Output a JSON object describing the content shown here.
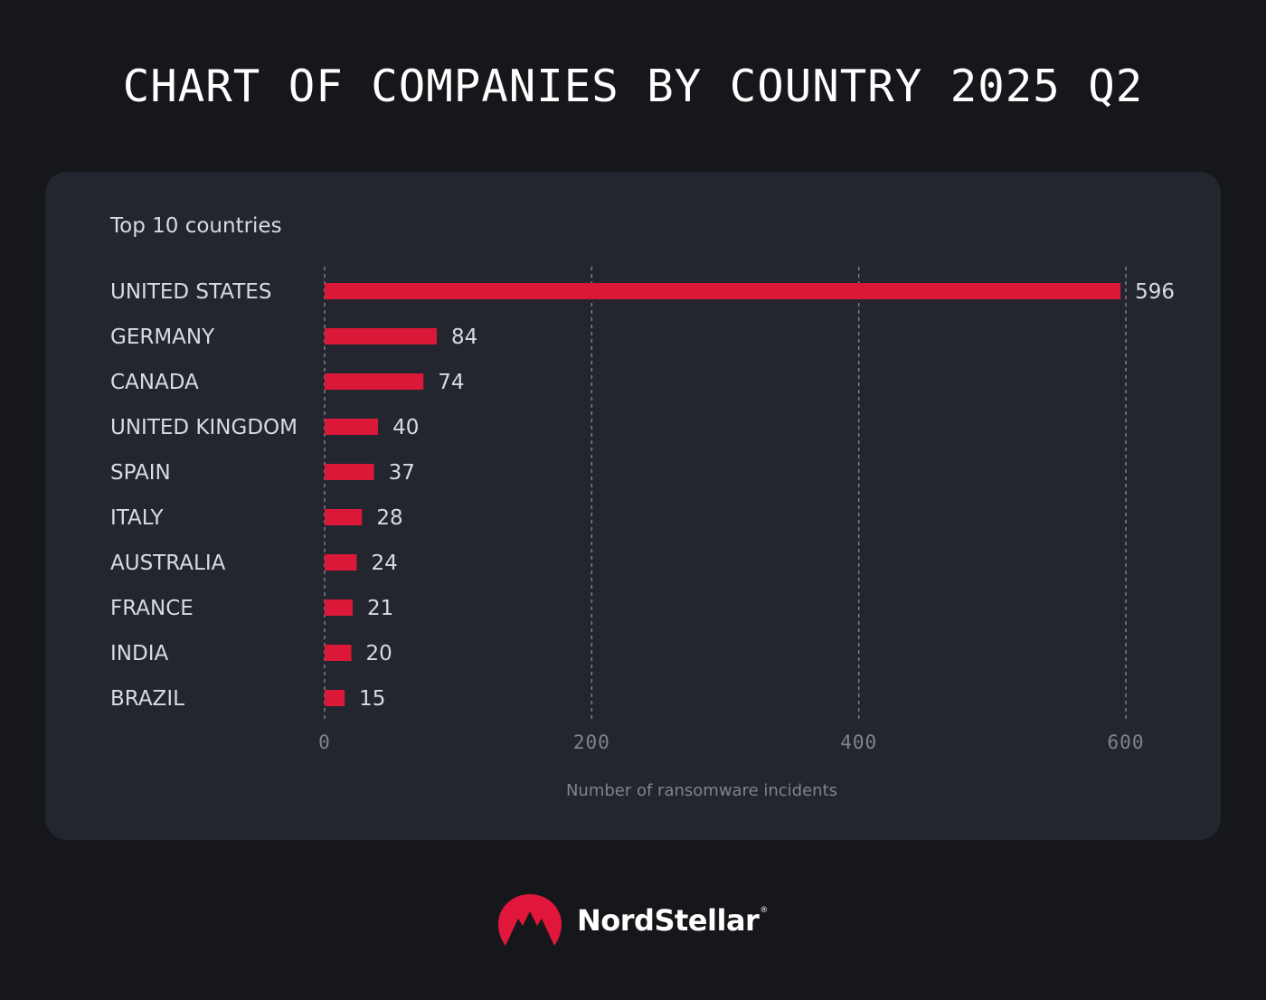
{
  "title": "CHART OF COMPANIES BY COUNTRY 2025 Q2",
  "brand": {
    "name": "NordStellar",
    "registered_mark": "®",
    "logo_icon": "nordstellar-mountain-logo",
    "logo_color": "#e0163b"
  },
  "colors": {
    "background": "#16171b",
    "card": "#23262e",
    "bar": "#dc1838",
    "grid": "#80848e"
  },
  "chart_data": {
    "type": "bar",
    "orientation": "horizontal",
    "subtitle": "Top 10 countries",
    "categories": [
      "UNITED STATES",
      "GERMANY",
      "CANADA",
      "UNITED KINGDOM",
      "SPAIN",
      "ITALY",
      "AUSTRALIA",
      "FRANCE",
      "INDIA",
      "BRAZIL"
    ],
    "values": [
      596,
      84,
      74,
      40,
      37,
      28,
      24,
      21,
      20,
      15
    ],
    "xlabel": "Number of ransomware incidents",
    "ylabel": "",
    "xlim": [
      0,
      600
    ],
    "xticks": [
      0,
      200,
      400,
      600
    ],
    "grid": "vertical dashed",
    "legend": "none"
  }
}
